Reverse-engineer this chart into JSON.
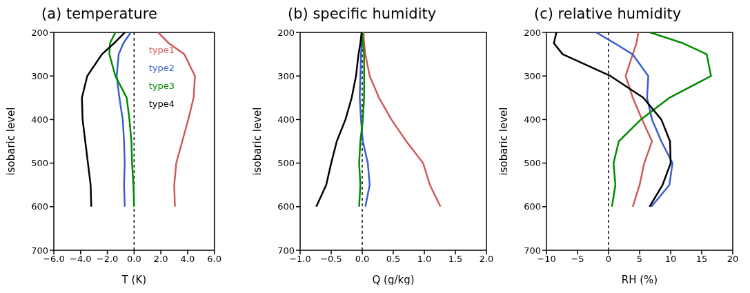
{
  "chart_data": [
    {
      "type": "line",
      "title": "(a) temperature",
      "xlabel": "T (K)",
      "ylabel": "isobaric level",
      "xlim": [
        -6,
        6
      ],
      "xticks": [
        {
          "value": -6,
          "label": "−6.0"
        },
        {
          "value": -4,
          "label": "−4.0"
        },
        {
          "value": -2,
          "label": "−2.0"
        },
        {
          "value": 0,
          "label": "0.0"
        },
        {
          "value": 2,
          "label": "2.0"
        },
        {
          "value": 4,
          "label": "4.0"
        },
        {
          "value": 6,
          "label": "6.0"
        }
      ],
      "ylim": [
        700,
        200
      ],
      "yticks": [
        200,
        300,
        400,
        500,
        600,
        700
      ],
      "grid": false,
      "marker": "none",
      "line_style": "solid",
      "legend": "top right",
      "ref_lines": [
        {
          "axis": "x",
          "value": 0,
          "color": "#000000",
          "line_style": "dashed"
        }
      ],
      "series": [
        {
          "name": "type1",
          "color": "#d05a5a",
          "x": [
            1.8,
            2.6,
            3.75,
            4.55,
            4.45,
            4.05,
            3.6,
            3.15,
            3.0,
            3.05
          ],
          "values": [
            200,
            225,
            250,
            300,
            350,
            400,
            450,
            500,
            550,
            600
          ]
        },
        {
          "name": "type2",
          "color": "#3a5fd0",
          "x": [
            -0.25,
            -0.8,
            -1.15,
            -1.3,
            -1.1,
            -0.85,
            -0.75,
            -0.7,
            -0.75,
            -0.7
          ],
          "values": [
            200,
            225,
            250,
            300,
            350,
            400,
            450,
            500,
            550,
            600
          ]
        },
        {
          "name": "type3",
          "color": "#008c00",
          "x": [
            -1.4,
            -1.8,
            -1.85,
            -1.4,
            -0.55,
            -0.35,
            -0.2,
            -0.15,
            -0.05,
            0
          ],
          "values": [
            200,
            225,
            250,
            300,
            350,
            400,
            450,
            500,
            550,
            600
          ]
        },
        {
          "name": "type4",
          "color": "#000000",
          "x": [
            -0.7,
            -1.5,
            -2.4,
            -3.5,
            -3.9,
            -3.85,
            -3.65,
            -3.45,
            -3.25,
            -3.2
          ],
          "values": [
            200,
            225,
            250,
            300,
            350,
            400,
            450,
            500,
            550,
            600
          ]
        }
      ]
    },
    {
      "type": "line",
      "title": "(b) specific humidity",
      "xlabel": "Q (g/kg)",
      "ylabel": "isobaric level",
      "xlim": [
        -1,
        2
      ],
      "xticks": [
        {
          "value": -1,
          "label": "−1.0"
        },
        {
          "value": -0.5,
          "label": "−0.5"
        },
        {
          "value": 0,
          "label": "0.0"
        },
        {
          "value": 0.5,
          "label": "0.5"
        },
        {
          "value": 1,
          "label": "1.0"
        },
        {
          "value": 1.5,
          "label": "1.5"
        },
        {
          "value": 2,
          "label": "2.0"
        }
      ],
      "ylim": [
        700,
        200
      ],
      "yticks": [
        200,
        300,
        400,
        500,
        600,
        700
      ],
      "grid": false,
      "marker": "none",
      "line_style": "solid",
      "ref_lines": [
        {
          "axis": "x",
          "value": 0,
          "color": "#000000",
          "line_style": "dashed"
        }
      ],
      "series": [
        {
          "color": "#d05a5a",
          "x": [
            0.02,
            0.03,
            0.05,
            0.12,
            0.27,
            0.47,
            0.71,
            0.98,
            1.09,
            1.26
          ],
          "values": [
            200,
            225,
            250,
            300,
            350,
            400,
            450,
            500,
            550,
            600
          ]
        },
        {
          "color": "#3a5fd0",
          "x": [
            0,
            -0.01,
            -0.02,
            -0.03,
            -0.04,
            -0.02,
            0.01,
            0.09,
            0.12,
            0.05
          ],
          "values": [
            200,
            225,
            250,
            300,
            350,
            400,
            450,
            500,
            550,
            600
          ]
        },
        {
          "color": "#008c00",
          "x": [
            0,
            0.01,
            0.03,
            0.03,
            0.03,
            0.01,
            -0.03,
            -0.05,
            -0.03,
            -0.05
          ],
          "values": [
            200,
            225,
            250,
            300,
            350,
            400,
            450,
            500,
            550,
            600
          ]
        },
        {
          "color": "#000000",
          "x": [
            -0.01,
            -0.03,
            -0.06,
            -0.1,
            -0.17,
            -0.27,
            -0.41,
            -0.5,
            -0.58,
            -0.74
          ],
          "values": [
            200,
            225,
            250,
            300,
            350,
            400,
            450,
            500,
            550,
            600
          ]
        }
      ]
    },
    {
      "type": "line",
      "title": "(c) relative humidity",
      "xlabel": "RH (%)",
      "ylabel": "isobaric level",
      "xlim": [
        -10,
        20
      ],
      "xticks": [
        {
          "value": -10,
          "label": "−10"
        },
        {
          "value": -5,
          "label": "−5"
        },
        0,
        5,
        10,
        15,
        20
      ],
      "ylim": [
        700,
        200
      ],
      "yticks": [
        200,
        300,
        400,
        500,
        600,
        700
      ],
      "grid": false,
      "marker": "none",
      "line_style": "solid",
      "ref_lines": [
        {
          "axis": "x",
          "value": 0,
          "color": "#000000",
          "line_style": "dashed"
        }
      ],
      "series": [
        {
          "color": "#d05a5a",
          "x": [
            4.8,
            4.5,
            3.9,
            2.75,
            3.9,
            5.4,
            7.0,
            5.75,
            5.0,
            3.9
          ],
          "values": [
            200,
            225,
            250,
            300,
            350,
            400,
            450,
            500,
            550,
            600
          ]
        },
        {
          "color": "#3a5fd0",
          "x": [
            -2.0,
            1.0,
            3.85,
            6.4,
            6.2,
            7.0,
            8.5,
            10.3,
            9.8,
            6.9
          ],
          "values": [
            200,
            225,
            250,
            300,
            350,
            400,
            450,
            500,
            550,
            600
          ]
        },
        {
          "color": "#008c00",
          "x": [
            6.7,
            12.0,
            15.8,
            16.5,
            9.8,
            5.2,
            1.65,
            0.8,
            1.1,
            0.55
          ],
          "values": [
            200,
            225,
            250,
            300,
            350,
            400,
            450,
            500,
            550,
            600
          ]
        },
        {
          "color": "#000000",
          "x": [
            -8.4,
            -8.8,
            -7.4,
            0.3,
            5.6,
            8.5,
            9.9,
            10.0,
            8.7,
            6.6
          ],
          "values": [
            200,
            225,
            250,
            300,
            350,
            400,
            450,
            500,
            550,
            600
          ]
        }
      ]
    }
  ]
}
